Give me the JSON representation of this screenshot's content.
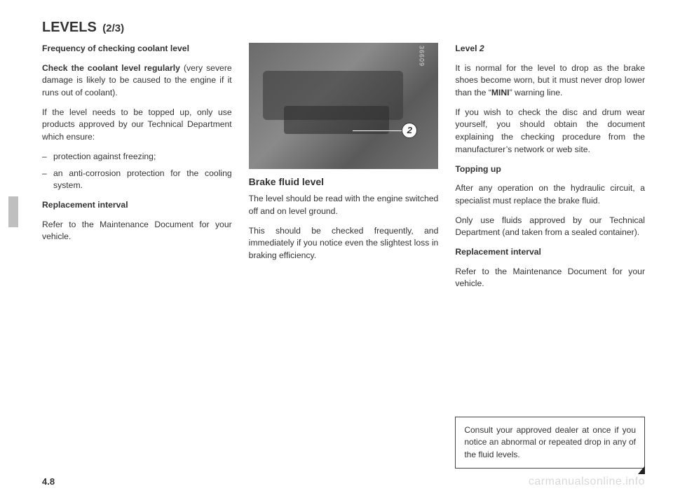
{
  "title": {
    "main": "LEVELS",
    "sub": "(2/3)"
  },
  "col1": {
    "h1": "Frequency of checking coolant level",
    "p1a": "Check the coolant level regularly",
    "p1b": " (very severe damage is likely to be caused to the engine if it runs out of coolant).",
    "p2": "If the level needs to be topped up, only use products approved by our Technical Department which ensure:",
    "li1": "protection against freezing;",
    "li2": "an anti-corrosion protection for the cooling system.",
    "h2": "Replacement interval",
    "p3": "Refer to the Maintenance Document for your vehicle."
  },
  "col2": {
    "fignum": "36609",
    "callout": "2",
    "h1": "Brake fluid level",
    "p1": "The level should be read with the engine switched off and on level ground.",
    "p2": "This should be checked frequently, and immediately if you notice even the slightest loss in braking efficiency."
  },
  "col3": {
    "h1a": "Level ",
    "h1b": "2",
    "p1a": "It is normal for the level to drop as the brake shoes become worn, but it must never drop lower than the “",
    "p1b": "MINI",
    "p1c": "” warning line.",
    "p2": "If you wish to check the disc and drum wear yourself, you should obtain the document explaining the checking procedure from the manufacturer’s network or web site.",
    "h2": "Topping up",
    "p3": "After any operation on the hydraulic circuit, a specialist must replace the brake fluid.",
    "p4": "Only use fluids approved by our Technical Department (and taken from a sealed container).",
    "h3": "Replacement interval",
    "p5": "Refer to the Maintenance Document for your vehicle.",
    "note": "Consult your approved dealer at once if you notice an abnormal or repeated drop in any of the fluid levels."
  },
  "pagenum": "4.8",
  "watermark": "carmanualsonline.info"
}
